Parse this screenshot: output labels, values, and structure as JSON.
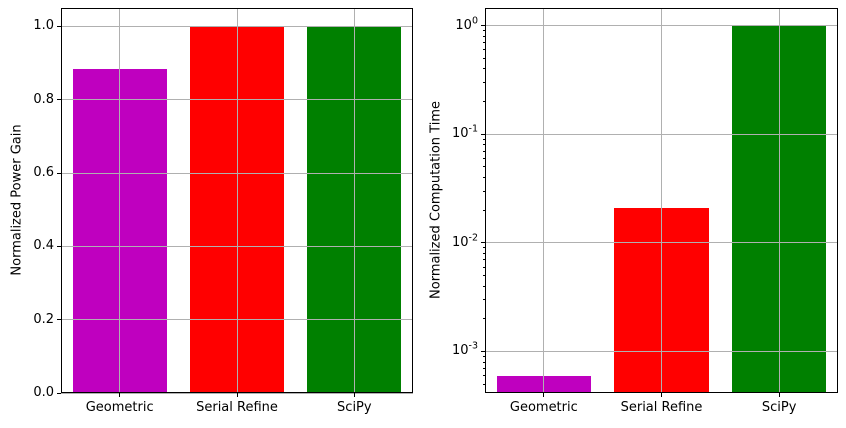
{
  "figure": {
    "background": "#ffffff",
    "grid_color": "#b0b0b0",
    "spine_color": "#000000",
    "tick_color": "#000000"
  },
  "chart_data": [
    {
      "type": "bar",
      "title": "",
      "xlabel": "",
      "ylabel": "Normalized Power Gain",
      "yscale": "linear",
      "ylim": [
        0,
        1.05
      ],
      "grid": true,
      "legend": false,
      "yticks": [
        0.0,
        0.2,
        0.4,
        0.6,
        0.8,
        1.0
      ],
      "ytick_labels": [
        "0.0",
        "0.2",
        "0.4",
        "0.6",
        "0.8",
        "1.0"
      ],
      "categories": [
        "Geometric",
        "Serial Refine",
        "SciPy"
      ],
      "values": [
        0.885,
        1.0,
        1.0
      ],
      "bar_colors": [
        "#bf00bf",
        "#ff0000",
        "#008000"
      ]
    },
    {
      "type": "bar",
      "title": "",
      "xlabel": "",
      "ylabel": "Normalized Computation Time",
      "yscale": "log",
      "ylim": [
        0.000415,
        1.45
      ],
      "grid": true,
      "legend": false,
      "yticks": [
        1,
        0.1,
        0.01,
        0.001
      ],
      "ytick_labels": [
        "10^0",
        "10^-1",
        "10^-2",
        "10^-3"
      ],
      "categories": [
        "Geometric",
        "Serial Refine",
        "SciPy"
      ],
      "values": [
        0.0006,
        0.021,
        1.0
      ],
      "bar_colors": [
        "#bf00bf",
        "#ff0000",
        "#008000"
      ]
    }
  ]
}
